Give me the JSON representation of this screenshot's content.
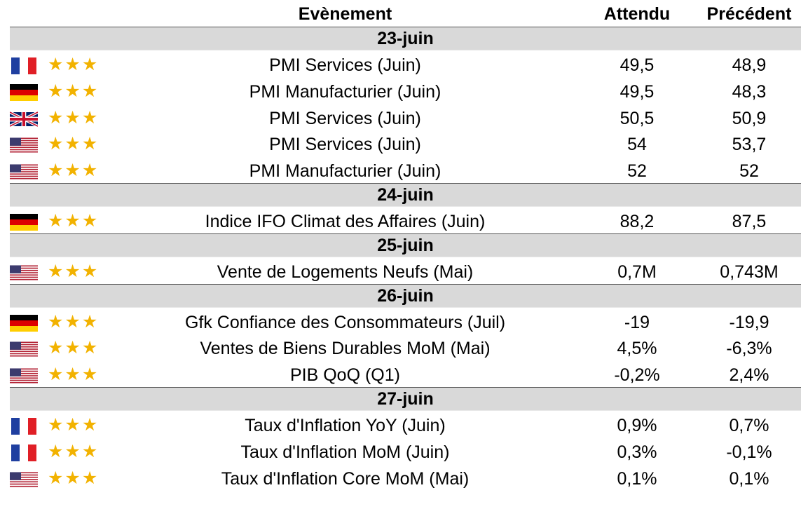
{
  "headers": {
    "event": "Evènement",
    "expected": "Attendu",
    "previous": "Précédent"
  },
  "star_glyph": "★★★",
  "colors": {
    "day_band": "#d9d9d9",
    "star": "#f2b200"
  },
  "days": [
    {
      "date": "23-juin",
      "rows": [
        {
          "flag": "fr-flag-icon",
          "event": "PMI Services (Juin)",
          "expected": "49,5",
          "previous": "48,9"
        },
        {
          "flag": "de-flag-icon",
          "event": "PMI Manufacturier (Juin)",
          "expected": "49,5",
          "previous": "48,3"
        },
        {
          "flag": "uk-flag-icon",
          "event": "PMI Services (Juin)",
          "expected": "50,5",
          "previous": "50,9"
        },
        {
          "flag": "us-flag-icon",
          "event": "PMI Services (Juin)",
          "expected": "54",
          "previous": "53,7"
        },
        {
          "flag": "us-flag-icon",
          "event": "PMI Manufacturier (Juin)",
          "expected": "52",
          "previous": "52"
        }
      ]
    },
    {
      "date": "24-juin",
      "rows": [
        {
          "flag": "de-flag-icon",
          "event": "Indice IFO Climat des Affaires (Juin)",
          "expected": "88,2",
          "previous": "87,5"
        }
      ]
    },
    {
      "date": "25-juin",
      "rows": [
        {
          "flag": "us-flag-icon",
          "event": "Vente de Logements Neufs (Mai)",
          "expected": "0,7M",
          "previous": "0,743M"
        }
      ]
    },
    {
      "date": "26-juin",
      "rows": [
        {
          "flag": "de-flag-icon",
          "event": "Gfk Confiance des Consommateurs (Juil)",
          "expected": "-19",
          "previous": "-19,9"
        },
        {
          "flag": "us-flag-icon",
          "event": "Ventes de Biens Durables MoM (Mai)",
          "expected": "4,5%",
          "previous": "-6,3%"
        },
        {
          "flag": "us-flag-icon",
          "event": "PIB QoQ (Q1)",
          "expected": "-0,2%",
          "previous": "2,4%"
        }
      ]
    },
    {
      "date": "27-juin",
      "rows": [
        {
          "flag": "fr-flag-icon",
          "event": "Taux d'Inflation YoY (Juin)",
          "expected": "0,9%",
          "previous": "0,7%"
        },
        {
          "flag": "fr-flag-icon",
          "event": "Taux d'Inflation MoM (Juin)",
          "expected": "0,3%",
          "previous": "-0,1%"
        },
        {
          "flag": "us-flag-icon",
          "event": "Taux d'Inflation Core MoM (Mai)",
          "expected": "0,1%",
          "previous": "0,1%"
        }
      ]
    }
  ]
}
